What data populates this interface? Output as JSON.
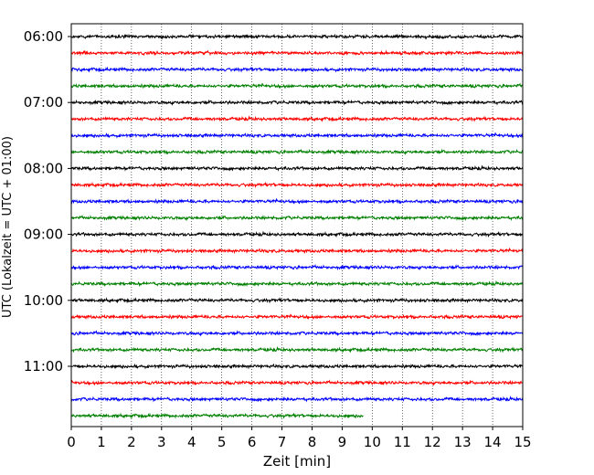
{
  "chart_data": {
    "type": "line",
    "title": "",
    "xlabel": "Zeit  [min]",
    "ylabel": "UTC (Lokalzeit = UTC + 01:00)",
    "xlim": [
      0,
      15
    ],
    "xticks": [
      0,
      1,
      2,
      3,
      4,
      5,
      6,
      7,
      8,
      9,
      10,
      11,
      12,
      13,
      14,
      15
    ],
    "ytick_labels": [
      "06:00",
      "07:00",
      "08:00",
      "09:00",
      "10:00",
      "11:00"
    ],
    "traces_per_hour": 4,
    "minutes_per_trace": 15,
    "grid": "vertical-dotted",
    "color_cycle": [
      "#000000",
      "#ff0000",
      "#0000ff",
      "#008000"
    ],
    "series": [
      {
        "start": "06:00",
        "end_minute": 15
      },
      {
        "start": "06:15",
        "end_minute": 15
      },
      {
        "start": "06:30",
        "end_minute": 15
      },
      {
        "start": "06:45",
        "end_minute": 15
      },
      {
        "start": "07:00",
        "end_minute": 15
      },
      {
        "start": "07:15",
        "end_minute": 15
      },
      {
        "start": "07:30",
        "end_minute": 15
      },
      {
        "start": "07:45",
        "end_minute": 15
      },
      {
        "start": "08:00",
        "end_minute": 15
      },
      {
        "start": "08:15",
        "end_minute": 15
      },
      {
        "start": "08:30",
        "end_minute": 15
      },
      {
        "start": "08:45",
        "end_minute": 15
      },
      {
        "start": "09:00",
        "end_minute": 15
      },
      {
        "start": "09:15",
        "end_minute": 15
      },
      {
        "start": "09:30",
        "end_minute": 15
      },
      {
        "start": "09:45",
        "end_minute": 15
      },
      {
        "start": "10:00",
        "end_minute": 15
      },
      {
        "start": "10:15",
        "end_minute": 15
      },
      {
        "start": "10:30",
        "end_minute": 15
      },
      {
        "start": "10:45",
        "end_minute": 15
      },
      {
        "start": "11:00",
        "end_minute": 15
      },
      {
        "start": "11:15",
        "end_minute": 15
      },
      {
        "start": "11:30",
        "end_minute": 15
      },
      {
        "start": "11:45",
        "end_minute": 9.7
      }
    ]
  }
}
